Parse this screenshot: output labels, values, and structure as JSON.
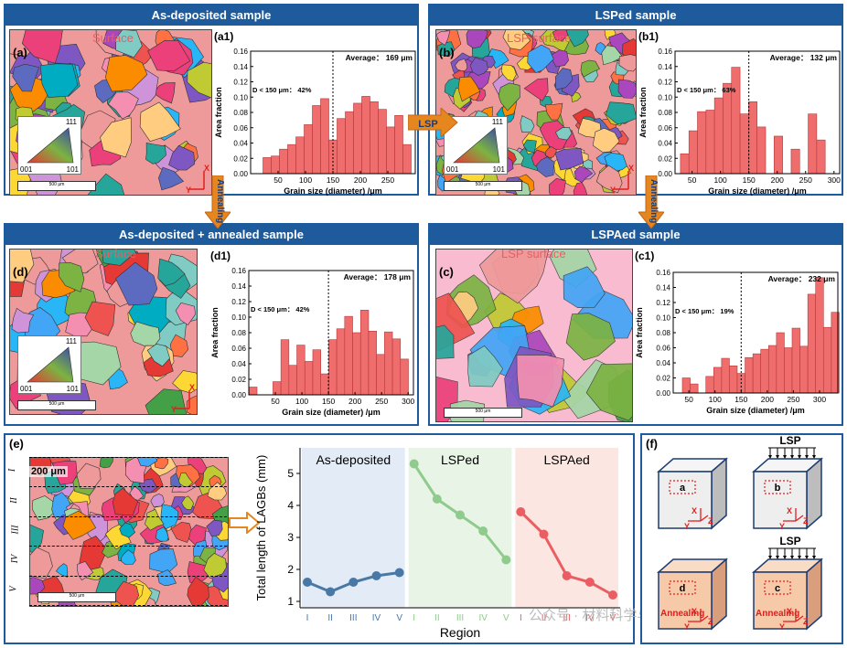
{
  "panels": {
    "a": {
      "title": "As-deposited sample",
      "label": "(a)",
      "surface": "Surface",
      "scale": "500 μm"
    },
    "b": {
      "title": "LSPed sample",
      "label": "(b)",
      "surface": "LSP surface",
      "scale": "500 μm"
    },
    "d": {
      "title": "As-deposited + annealed sample",
      "label": "(d)",
      "surface": "Surface",
      "scale": "500 μm"
    },
    "c": {
      "title": "LSPAed sample",
      "label": "(c)",
      "surface": "LSP surface",
      "scale": "500 μm"
    },
    "e": {
      "label": "(e)",
      "thickness": "200 μm",
      "regions": [
        "I",
        "II",
        "III",
        "IV",
        "V"
      ],
      "scale": "500 μm"
    },
    "f": {
      "label": "(f)",
      "cubes": [
        {
          "mark": "a",
          "lsp": "",
          "annealing": ""
        },
        {
          "mark": "b",
          "lsp": "LSP",
          "annealing": ""
        },
        {
          "mark": "d",
          "lsp": "",
          "annealing": "Annealing"
        },
        {
          "mark": "c",
          "lsp": "LSP",
          "annealing": "Annealing"
        }
      ]
    }
  },
  "ipf": {
    "top": "111",
    "left": "001",
    "right": "101"
  },
  "axes_labels": {
    "x": "X",
    "y": "Y",
    "z": "Z"
  },
  "flow": {
    "lsp": "LSP",
    "annealing_left": "Annealing",
    "annealing_right": "Annealing"
  },
  "watermark": "公众号 · 材料科学与工程",
  "chart_data": [
    {
      "id": "a1",
      "label": "(a1)",
      "type": "bar",
      "xlabel": "Grain size (diameter) /μm",
      "ylabel": "Area fraction",
      "xlim": [
        0,
        300
      ],
      "ylim": [
        0,
        0.16
      ],
      "xticks": [
        50,
        100,
        150,
        200,
        250
      ],
      "yticks": [
        0.0,
        0.02,
        0.04,
        0.06,
        0.08,
        0.1,
        0.12,
        0.14,
        0.16
      ],
      "binwidth": 15,
      "x": [
        30,
        45,
        60,
        75,
        90,
        105,
        120,
        135,
        150,
        165,
        180,
        195,
        210,
        225,
        240,
        255,
        270,
        285
      ],
      "values": [
        0.021,
        0.023,
        0.032,
        0.038,
        0.048,
        0.064,
        0.089,
        0.098,
        0.044,
        0.072,
        0.081,
        0.092,
        0.101,
        0.094,
        0.084,
        0.061,
        0.076,
        0.038
      ],
      "dline": 150,
      "annotations": {
        "average": "Average： 169 μm",
        "dfrac": "D < 150 μm： 42%"
      }
    },
    {
      "id": "b1",
      "label": "(b1)",
      "type": "bar",
      "xlabel": "Grain size (diameter) /μm",
      "ylabel": "Area fraction",
      "xlim": [
        20,
        310
      ],
      "ylim": [
        0,
        0.16
      ],
      "xticks": [
        50,
        100,
        150,
        200,
        250,
        300
      ],
      "yticks": [
        0.0,
        0.02,
        0.04,
        0.06,
        0.08,
        0.1,
        0.12,
        0.14,
        0.16
      ],
      "binwidth": 15,
      "x": [
        37,
        52,
        67,
        82,
        97,
        112,
        127,
        142,
        157,
        172,
        187,
        202,
        217,
        232,
        247,
        262,
        277
      ],
      "values": [
        0.026,
        0.056,
        0.081,
        0.083,
        0.099,
        0.118,
        0.139,
        0.078,
        0.094,
        0.061,
        0.0,
        0.049,
        0.0,
        0.032,
        0.0,
        0.078,
        0.044
      ],
      "dline": 150,
      "annotations": {
        "average": "Average： 132 μm",
        "dfrac": "D < 150 μm： 63%"
      }
    },
    {
      "id": "d1",
      "label": "(d1)",
      "type": "bar",
      "xlabel": "Grain size (diameter) /μm",
      "ylabel": "Area fraction",
      "xlim": [
        0,
        310
      ],
      "ylim": [
        0,
        0.16
      ],
      "xticks": [
        50,
        100,
        150,
        200,
        250,
        300
      ],
      "yticks": [
        0.0,
        0.02,
        0.04,
        0.06,
        0.08,
        0.1,
        0.12,
        0.14,
        0.16
      ],
      "binwidth": 15,
      "x": [
        8,
        23,
        38,
        53,
        68,
        83,
        98,
        113,
        128,
        143,
        158,
        173,
        188,
        203,
        218,
        233,
        248,
        263,
        278,
        293
      ],
      "values": [
        0.01,
        0.0,
        0.0,
        0.017,
        0.071,
        0.038,
        0.064,
        0.043,
        0.058,
        0.027,
        0.071,
        0.085,
        0.101,
        0.08,
        0.109,
        0.082,
        0.052,
        0.081,
        0.072,
        0.046
      ],
      "dline": 150,
      "annotations": {
        "average": "Average： 178 μm",
        "dfrac": "D < 150 μm： 42%"
      }
    },
    {
      "id": "c1",
      "label": "(c1)",
      "type": "bar",
      "xlabel": "Grain size (diameter) /μm",
      "ylabel": "Area fraction",
      "xlim": [
        20,
        335
      ],
      "ylim": [
        0,
        0.16
      ],
      "xticks": [
        50,
        100,
        150,
        200,
        250,
        300
      ],
      "yticks": [
        0.0,
        0.02,
        0.04,
        0.06,
        0.08,
        0.1,
        0.12,
        0.14,
        0.16
      ],
      "binwidth": 15,
      "x": [
        45,
        60,
        75,
        90,
        105,
        120,
        135,
        150,
        165,
        180,
        195,
        210,
        225,
        240,
        255,
        270,
        285,
        300,
        315,
        330
      ],
      "values": [
        0.02,
        0.012,
        0.0,
        0.022,
        0.034,
        0.046,
        0.036,
        0.026,
        0.047,
        0.052,
        0.058,
        0.063,
        0.08,
        0.06,
        0.086,
        0.062,
        0.131,
        0.153,
        0.087,
        0.107
      ],
      "dline": 150,
      "annotations": {
        "average": "Average： 232 μm",
        "dfrac": "D < 150 μm： 19%"
      }
    },
    {
      "id": "e-chart",
      "type": "line",
      "ylabel": "Total length of LAGBs (mm)",
      "xlabel": "Region",
      "ylim": [
        0.8,
        5.8
      ],
      "yticks": [
        1,
        2,
        3,
        4,
        5
      ],
      "groups": [
        {
          "name": "As-deposited",
          "color": "#4a78a6",
          "bg": "#e3ecf6",
          "categories": [
            "I",
            "II",
            "III",
            "IV",
            "V"
          ],
          "values": [
            1.6,
            1.3,
            1.6,
            1.8,
            1.9
          ]
        },
        {
          "name": "LSPed",
          "color": "#8fcb8c",
          "bg": "#e8f4e6",
          "categories": [
            "I",
            "II",
            "III",
            "IV",
            "V"
          ],
          "values": [
            5.3,
            4.2,
            3.7,
            3.2,
            2.3
          ]
        },
        {
          "name": "LSPAed",
          "color": "#ea5e63",
          "bg": "#fbe6e1",
          "categories": [
            "I",
            "II",
            "III",
            "IV",
            "V"
          ],
          "values": [
            3.8,
            3.1,
            1.8,
            1.6,
            1.2
          ]
        }
      ]
    }
  ]
}
